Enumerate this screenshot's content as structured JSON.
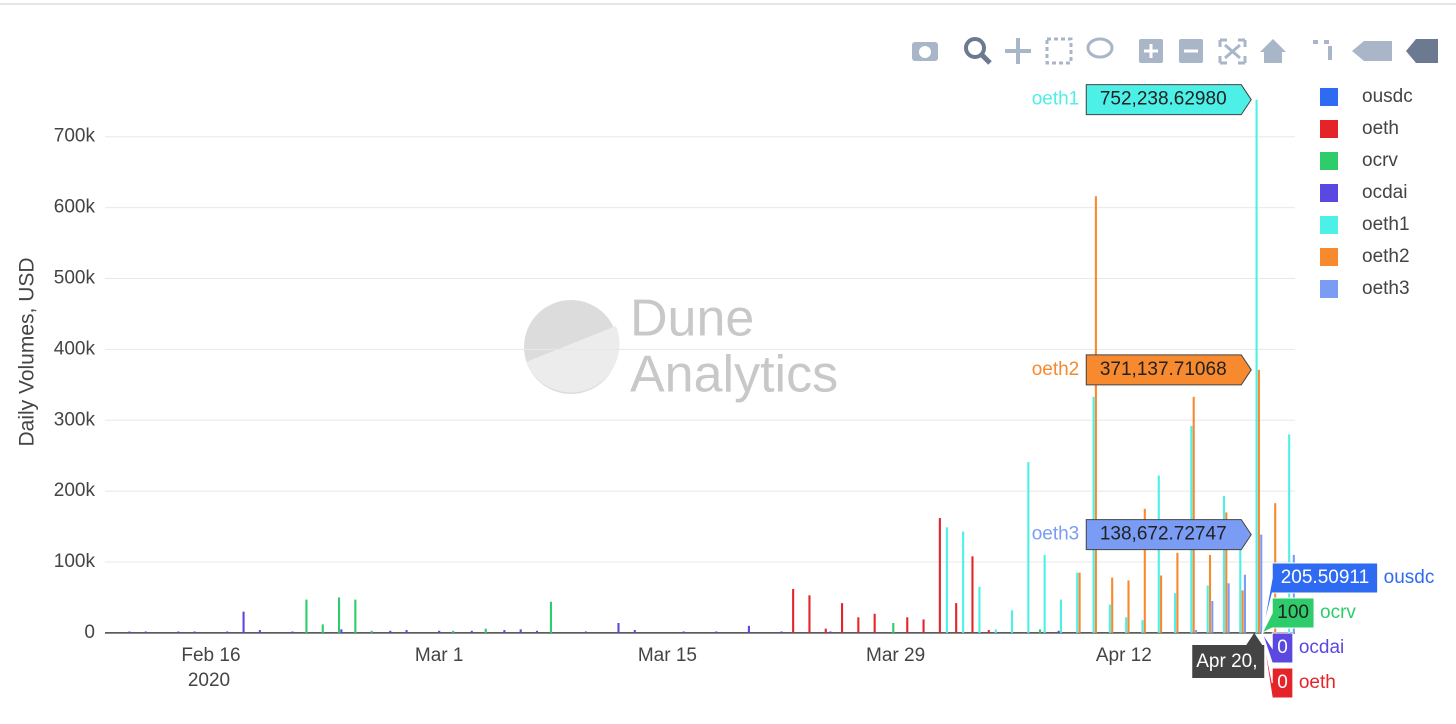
{
  "chart_data": {
    "type": "bar",
    "watermark": [
      "Dune",
      "Analytics"
    ],
    "ylabel": "Daily Volumes, USD",
    "xlim": [
      "2020-02-09T12:00",
      "2020-04-22T12:00"
    ],
    "xticks": [
      {
        "value": "2020-02-16",
        "label": "Feb 16"
      },
      {
        "value": "2020-03-01",
        "label": "Mar 1"
      },
      {
        "value": "2020-03-15",
        "label": "Mar 15"
      },
      {
        "value": "2020-03-29",
        "label": "Mar 29"
      },
      {
        "value": "2020-04-12",
        "label": "Apr 12"
      }
    ],
    "x_year_label": "2020",
    "ylim": [
      -10000,
      780000
    ],
    "yticks": [
      0,
      {
        "value": 100000,
        "label": "100k"
      },
      {
        "value": 200000,
        "label": "200k"
      },
      {
        "value": 300000,
        "label": "300k"
      },
      {
        "value": 400000,
        "label": "400k"
      },
      {
        "value": 500000,
        "label": "500k"
      },
      {
        "value": 600000,
        "label": "600k"
      },
      {
        "value": 700000,
        "label": "700k"
      }
    ],
    "grid": true,
    "legend": "top-right",
    "hover_x_label": "Apr 20,",
    "series": [
      {
        "name": "ousdc",
        "color": "#2f6af2",
        "x": [
          "2020-04-20"
        ],
        "values": [
          205.50911
        ],
        "value_labels": [
          "205.50911"
        ]
      },
      {
        "name": "oeth",
        "color": "#e5242a",
        "x": [
          "2020-03-23",
          "2020-03-24",
          "2020-03-25",
          "2020-03-26",
          "2020-03-27",
          "2020-03-28",
          "2020-03-30",
          "2020-03-31",
          "2020-04-01",
          "2020-04-02",
          "2020-04-03",
          "2020-04-04",
          "2020-04-20"
        ],
        "values": [
          62000,
          53000,
          6000,
          42000,
          22000,
          27000,
          22000,
          19000,
          162000,
          42000,
          108000,
          4000,
          0
        ],
        "value_labels": [
          null,
          null,
          null,
          null,
          null,
          null,
          null,
          null,
          null,
          null,
          null,
          null,
          "0"
        ]
      },
      {
        "name": "ocrv",
        "color": "#2ecc6a",
        "x": [
          "2020-02-22",
          "2020-02-23",
          "2020-02-24",
          "2020-02-25",
          "2020-02-26",
          "2020-03-02",
          "2020-03-04",
          "2020-03-08",
          "2020-03-29",
          "2020-04-07",
          "2020-04-20"
        ],
        "values": [
          47000,
          12000,
          50000,
          47000,
          3000,
          3000,
          6000,
          44000,
          14000,
          5000,
          100
        ],
        "value_labels": [
          null,
          null,
          null,
          null,
          null,
          null,
          null,
          null,
          null,
          null,
          "100"
        ]
      },
      {
        "name": "ocdai",
        "color": "#5a48e0",
        "x": [
          "2020-02-11",
          "2020-02-12",
          "2020-02-14",
          "2020-02-15",
          "2020-02-17",
          "2020-02-18",
          "2020-02-19",
          "2020-02-21",
          "2020-02-24",
          "2020-02-27",
          "2020-02-28",
          "2020-03-01",
          "2020-03-03",
          "2020-03-05",
          "2020-03-06",
          "2020-03-07",
          "2020-03-10",
          "2020-03-12",
          "2020-03-13",
          "2020-03-16",
          "2020-03-18",
          "2020-03-20",
          "2020-03-22",
          "2020-03-25",
          "2020-04-08",
          "2020-04-20"
        ],
        "values": [
          2000,
          2000,
          2000,
          2000,
          2000,
          30000,
          4000,
          2000,
          5000,
          3000,
          4000,
          3000,
          3000,
          4000,
          5000,
          3000,
          2000,
          14000,
          4000,
          2000,
          2000,
          10000,
          2000,
          2000,
          3000,
          0
        ],
        "value_labels": [
          null,
          null,
          null,
          null,
          null,
          null,
          null,
          null,
          null,
          null,
          null,
          null,
          null,
          null,
          null,
          null,
          null,
          null,
          null,
          null,
          null,
          null,
          null,
          null,
          null,
          "0"
        ]
      },
      {
        "name": "oeth1",
        "color": "#4cf0e6",
        "x": [
          "2020-04-01",
          "2020-04-02",
          "2020-04-03",
          "2020-04-04",
          "2020-04-05",
          "2020-04-06",
          "2020-04-07",
          "2020-04-08",
          "2020-04-09",
          "2020-04-10",
          "2020-04-11",
          "2020-04-12",
          "2020-04-13",
          "2020-04-14",
          "2020-04-15",
          "2020-04-16",
          "2020-04-17",
          "2020-04-18",
          "2020-04-19",
          "2020-04-20",
          "2020-04-22"
        ],
        "values": [
          149000,
          143000,
          65000,
          5000,
          32000,
          241000,
          110000,
          47000,
          85000,
          333000,
          40000,
          22000,
          18000,
          222000,
          56000,
          292000,
          67000,
          193000,
          125000,
          752238.6298,
          280000
        ],
        "value_labels": [
          null,
          null,
          null,
          null,
          null,
          null,
          null,
          null,
          null,
          null,
          null,
          null,
          null,
          null,
          null,
          null,
          null,
          null,
          null,
          "752,238.62980",
          null
        ]
      },
      {
        "name": "oeth2",
        "color": "#f7892f",
        "x": [
          "2020-04-09",
          "2020-04-10",
          "2020-04-11",
          "2020-04-12",
          "2020-04-13",
          "2020-04-14",
          "2020-04-15",
          "2020-04-16",
          "2020-04-17",
          "2020-04-18",
          "2020-04-19",
          "2020-04-20",
          "2020-04-21"
        ],
        "values": [
          85000,
          616000,
          78000,
          74000,
          175000,
          81000,
          113000,
          333000,
          110000,
          170000,
          60000,
          371137.71068,
          183000
        ],
        "value_labels": [
          null,
          null,
          null,
          null,
          null,
          null,
          null,
          null,
          null,
          null,
          null,
          "371,137.71068",
          null
        ]
      },
      {
        "name": "oeth3",
        "color": "#7b9cf5",
        "x": [
          "2020-04-16",
          "2020-04-17",
          "2020-04-18",
          "2020-04-19",
          "2020-04-20",
          "2020-04-22"
        ],
        "values": [
          4000,
          45000,
          70000,
          82000,
          138672.72747,
          110000
        ],
        "value_labels": [
          null,
          null,
          null,
          null,
          "138,672.72747",
          null
        ]
      }
    ]
  }
}
